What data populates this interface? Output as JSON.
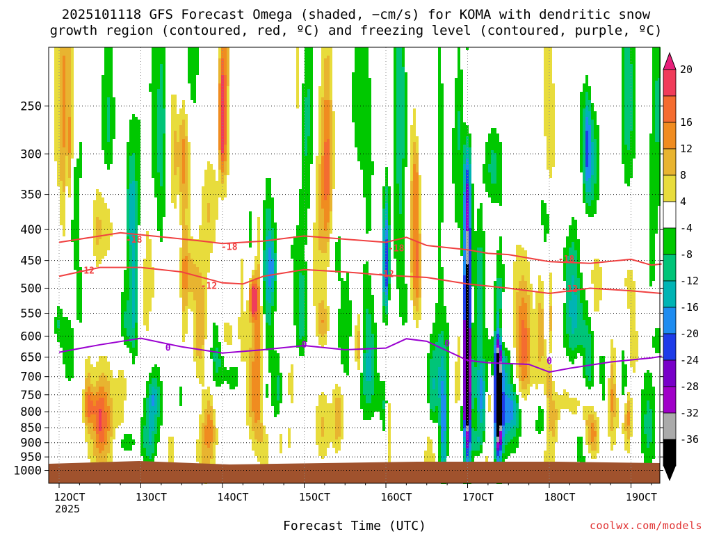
{
  "title_line1": "2025101118 GFS Forecast Omega (shaded, −cm/s) for KOMA with dendritic snow",
  "title_line2": "growth region (contoured, red, ºC) and freezing level (contoured, purple, ºC)",
  "xlabel": "Forecast Time (UTC)",
  "credit": "coolwx.com/models",
  "colors": {
    "dgz_contour": "#f04040",
    "freezing_contour": "#9a00d0",
    "ground": "#a0522d",
    "grid": "#888888"
  },
  "chart_data": {
    "type": "heatmap",
    "x_ticks": [
      "12OCT",
      "13OCT",
      "14OCT",
      "15OCT",
      "16OCT",
      "17OCT",
      "18OCT",
      "19OCT"
    ],
    "x_year_label": "2025",
    "y_ticks": [
      250,
      300,
      350,
      400,
      450,
      500,
      550,
      600,
      650,
      700,
      750,
      800,
      850,
      900,
      950,
      1000
    ],
    "y_axis": "pressure (hPa), log scale, inverted",
    "grid": true,
    "colorbar": {
      "labels": [
        "20",
        "16",
        "12",
        "8",
        "4",
        "-4",
        "-8",
        "-12",
        "-16",
        "-20",
        "-24",
        "-28",
        "-32",
        "-36"
      ],
      "colors": [
        "#f03c5a",
        "#f46c30",
        "#f08c20",
        "#e8b430",
        "#e8dc3c",
        "#ffffff",
        "#00c800",
        "#00c478",
        "#00b4b4",
        "#1e8cf0",
        "#1e3ce8",
        "#7800c8",
        "#a000c8",
        "#aaaaaa",
        "#000000"
      ],
      "extend": "both",
      "top_arrow_color": "#e8207a"
    },
    "contours": [
      {
        "level_label": "-18",
        "color": "#f04040",
        "points": [
          [
            "12OCT00",
            420
          ],
          [
            "12OCT18",
            405
          ],
          [
            "13OCT00",
            408
          ],
          [
            "13OCT18",
            418
          ],
          [
            "14OCT00",
            422
          ],
          [
            "14OCT12",
            418
          ],
          [
            "15OCT00",
            410
          ],
          [
            "15OCT12",
            415
          ],
          [
            "16OCT00",
            420
          ],
          [
            "16OCT06",
            412
          ],
          [
            "16OCT12",
            425
          ],
          [
            "17OCT00",
            432
          ],
          [
            "17OCT06",
            438
          ],
          [
            "17OCT12",
            440
          ],
          [
            "18OCT00",
            452
          ],
          [
            "18OCT12",
            455
          ],
          [
            "19OCT00",
            448
          ],
          [
            "19OCT06",
            458
          ],
          [
            "19OCT09",
            456
          ]
        ],
        "labels": [
          [
            "12OCT22",
            416
          ],
          [
            "14OCT02",
            428
          ],
          [
            "16OCT03",
            430
          ],
          [
            "18OCT05",
            448
          ]
        ]
      },
      {
        "level_label": "-12",
        "color": "#f04040",
        "points": [
          [
            "12OCT00",
            478
          ],
          [
            "12OCT12",
            462
          ],
          [
            "13OCT00",
            462
          ],
          [
            "13OCT12",
            470
          ],
          [
            "14OCT00",
            490
          ],
          [
            "14OCT06",
            492
          ],
          [
            "14OCT12",
            478
          ],
          [
            "15OCT00",
            466
          ],
          [
            "15OCT12",
            470
          ],
          [
            "16OCT00",
            476
          ],
          [
            "16OCT12",
            480
          ],
          [
            "17OCT00",
            492
          ],
          [
            "17OCT12",
            500
          ],
          [
            "18OCT00",
            510
          ],
          [
            "18OCT12",
            500
          ],
          [
            "19OCT00",
            505
          ],
          [
            "19OCT09",
            510
          ]
        ],
        "labels": [
          [
            "12OCT08",
            468
          ],
          [
            "13OCT20",
            496
          ],
          [
            "16OCT00",
            474
          ],
          [
            "18OCT06",
            502
          ]
        ]
      },
      {
        "level_label": "0",
        "color": "#9a00d0",
        "points": [
          [
            "12OCT00",
            638
          ],
          [
            "12OCT12",
            620
          ],
          [
            "13OCT00",
            605
          ],
          [
            "13OCT12",
            625
          ],
          [
            "14OCT00",
            640
          ],
          [
            "14OCT12",
            632
          ],
          [
            "15OCT00",
            622
          ],
          [
            "15OCT12",
            632
          ],
          [
            "16OCT00",
            628
          ],
          [
            "16OCT06",
            606
          ],
          [
            "16OCT12",
            612
          ],
          [
            "17OCT00",
            658
          ],
          [
            "17OCT06",
            664
          ],
          [
            "17OCT18",
            668
          ],
          [
            "18OCT00",
            688
          ],
          [
            "18OCT06",
            678
          ],
          [
            "18OCT18",
            662
          ],
          [
            "19OCT06",
            652
          ],
          [
            "19OCT09",
            648
          ]
        ],
        "labels": [
          [
            "13OCT08",
            628
          ],
          [
            "15OCT00",
            620
          ],
          [
            "16OCT18",
            618
          ],
          [
            "18OCT00",
            660
          ]
        ]
      }
    ],
    "omega_features": [
      {
        "time": "17OCT00",
        "p_top": 300,
        "p_bottom": 950,
        "peak": -36,
        "sign": "upward"
      },
      {
        "time": "17OCT09",
        "p_top": 560,
        "p_bottom": 950,
        "peak": -36,
        "sign": "upward"
      },
      {
        "time": "16OCT00",
        "p_top": 330,
        "p_bottom": 560,
        "peak": -20,
        "sign": "upward"
      },
      {
        "time": "14OCT09",
        "p_top": 480,
        "p_bottom": 560,
        "peak": 20,
        "sign": "downward"
      },
      {
        "time": "14OCT00",
        "p_top": 200,
        "p_bottom": 320,
        "peak": 20,
        "sign": "downward"
      },
      {
        "time": "17OCT00",
        "p_top": 200,
        "p_bottom": 300,
        "peak": 12,
        "sign": "downward"
      }
    ]
  }
}
